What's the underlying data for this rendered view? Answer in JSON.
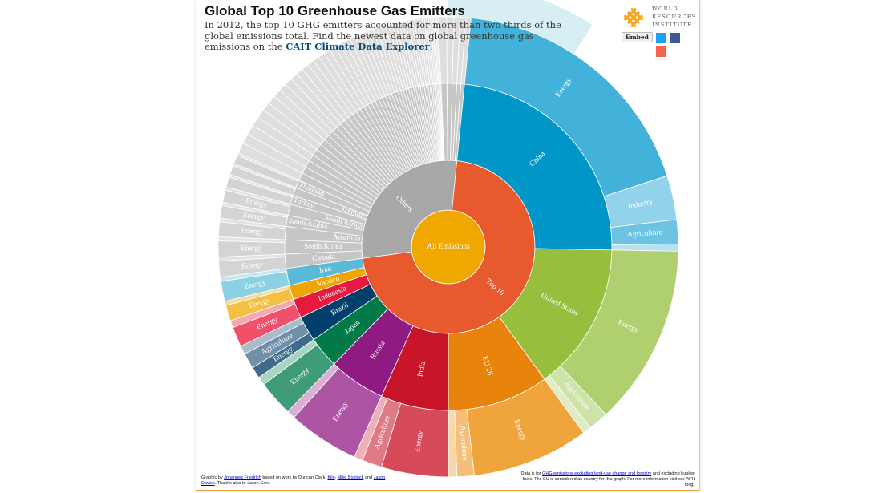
{
  "header": {
    "title": "Global Top 10 Greenhouse Gas Emitters",
    "subtitle_before": "In 2012, the top 10 GHG emitters accounted for more than two thirds of the global emissions total. Find the newest data on global greenhouse gas emissions on the ",
    "subtitle_link": "CAIT Climate Data Explorer",
    "subtitle_after": "."
  },
  "logo": {
    "line1": "WORLD",
    "line2": "RESOURCES",
    "line3": "INSTITUTE",
    "color": "#f5a623"
  },
  "share": {
    "embed_label": "Embed",
    "twitter_color": "#1da1f2",
    "facebook_color": "#3b5998",
    "google_color": "#f56350"
  },
  "footer_left": {
    "t1": "Graphic by ",
    "l1": "Johannes Friedrich",
    "t2": " based on work by Duncan Clark, ",
    "l2": "Kilo",
    "t3": ", ",
    "l3": "Mike Bostock",
    "t4": " and ",
    "l4": "Jason Davies",
    "t5": ". Thanks also to Jason Caro."
  },
  "footer_right": {
    "t1": "Data is for ",
    "l1": "GHG emissions excluding land-use change and forestry",
    "t2": " and excluding bunker fuels. The EU is considered as country for this graph. For more information visit our WRI blog."
  },
  "chart_data": {
    "type": "sunburst",
    "unit": "share of global GHG emissions (%), 2012",
    "root": {
      "name": "All Emissions",
      "color": "#f0a800"
    },
    "groups": [
      {
        "name": "Top 10",
        "color": "#e85a2e",
        "children": [
          {
            "name": "China",
            "color": "#0096c8",
            "value": 25.3,
            "sectors": [
              {
                "name": "Energy",
                "value": 20.0,
                "color": "#42b2da"
              },
              {
                "name": "Industry",
                "value": 3.1,
                "color": "#92d2ea"
              },
              {
                "name": "Agriculture",
                "value": 1.7,
                "color": "#6cc3e2"
              },
              {
                "name": "",
                "value": 0.5,
                "color": "#b5e1f1"
              }
            ]
          },
          {
            "name": "United States",
            "color": "#97be3d",
            "value": 14.7,
            "sectors": [
              {
                "name": "Energy",
                "value": 12.7,
                "color": "#b0cf6e"
              },
              {
                "name": "Agriculture",
                "value": 1.4,
                "color": "#cfe2a8"
              },
              {
                "name": "",
                "value": 0.6,
                "color": "#e0ecc6"
              }
            ]
          },
          {
            "name": "EU 28",
            "color": "#e8830c",
            "value": 10.0,
            "sectors": [
              {
                "name": "Energy",
                "value": 8.2,
                "color": "#f0a43c"
              },
              {
                "name": "Agriculture",
                "value": 1.2,
                "color": "#f5bf7a"
              },
              {
                "name": "",
                "value": 0.6,
                "color": "#f9d7aa"
              }
            ]
          },
          {
            "name": "India",
            "color": "#c8152a",
            "value": 6.7,
            "sectors": [
              {
                "name": "Energy",
                "value": 4.7,
                "color": "#d64a5a"
              },
              {
                "name": "Agriculture",
                "value": 1.4,
                "color": "#e07a85"
              },
              {
                "name": "",
                "value": 0.6,
                "color": "#edb0b7"
              }
            ]
          },
          {
            "name": "Russia",
            "color": "#8e1a82",
            "value": 5.6,
            "sectors": [
              {
                "name": "Energy",
                "value": 5.0,
                "color": "#ad54a3"
              },
              {
                "name": "",
                "value": 0.6,
                "color": "#dcb0d6"
              }
            ]
          },
          {
            "name": "Japan",
            "color": "#027a48",
            "value": 3.1,
            "sectors": [
              {
                "name": "Energy",
                "value": 2.5,
                "color": "#3f9c78"
              },
              {
                "name": "",
                "value": 0.6,
                "color": "#a9d3c2"
              }
            ]
          },
          {
            "name": "Brazil",
            "color": "#003e6b",
            "value": 2.5,
            "sectors": [
              {
                "name": "Energy",
                "value": 0.8,
                "color": "#3f6a8c"
              },
              {
                "name": "Agriculture",
                "value": 1.1,
                "color": "#6f90a8"
              },
              {
                "name": "",
                "value": 0.6,
                "color": "#aabccb"
              }
            ]
          },
          {
            "name": "Indonesia",
            "color": "#e8193e",
            "value": 1.9,
            "sectors": [
              {
                "name": "Energy",
                "value": 1.4,
                "color": "#f0506a"
              },
              {
                "name": "",
                "value": 0.5,
                "color": "#f7a6b3"
              }
            ]
          },
          {
            "name": "Mexico",
            "color": "#f0a500",
            "value": 1.4,
            "sectors": [
              {
                "name": "Energy",
                "value": 1.1,
                "color": "#f3bf45"
              },
              {
                "name": "",
                "value": 0.3,
                "color": "#f8dc9c"
              }
            ]
          },
          {
            "name": "Iran",
            "color": "#5ab9d6",
            "value": 1.7,
            "sectors": [
              {
                "name": "Energy",
                "value": 1.4,
                "color": "#8cd0e4"
              },
              {
                "name": "",
                "value": 0.3,
                "color": "#c5e7f1"
              }
            ]
          }
        ]
      },
      {
        "name": "Others",
        "color": "#a8a8a8",
        "child_color": "#c6c6c6",
        "sector_color": "#d4d4d4",
        "children": [
          {
            "name": "Canada",
            "value": 1.4
          },
          {
            "name": "South Korea",
            "value": 1.4
          },
          {
            "name": "Australia",
            "value": 1.3
          },
          {
            "name": "Saudi Arabia",
            "value": 1.1
          },
          {
            "name": "South Africa",
            "value": 1.1
          },
          {
            "name": "Turkey",
            "value": 0.9
          },
          {
            "name": "Ukraine",
            "value": 0.8
          },
          {
            "name": "Thailand",
            "value": 0.8
          }
        ],
        "unlabeled_values": [
          0.75,
          0.7,
          0.7,
          0.65,
          0.65,
          0.6,
          0.6,
          0.58,
          0.56,
          0.54,
          0.52,
          0.5,
          0.5,
          0.48,
          0.46,
          0.45,
          0.44,
          0.42,
          0.4,
          0.4,
          0.38,
          0.36,
          0.35,
          0.34,
          0.33,
          0.32,
          0.3,
          0.3,
          0.28,
          0.27,
          0.26,
          0.25,
          0.24,
          0.23,
          0.22,
          0.21,
          0.2,
          0.2,
          0.19,
          0.18,
          0.17,
          0.16,
          0.15,
          0.14,
          0.13,
          0.12,
          0.11,
          0.1,
          0.1,
          0.09,
          0.6,
          0.5,
          0.45,
          0.4,
          0.35
        ]
      }
    ]
  }
}
